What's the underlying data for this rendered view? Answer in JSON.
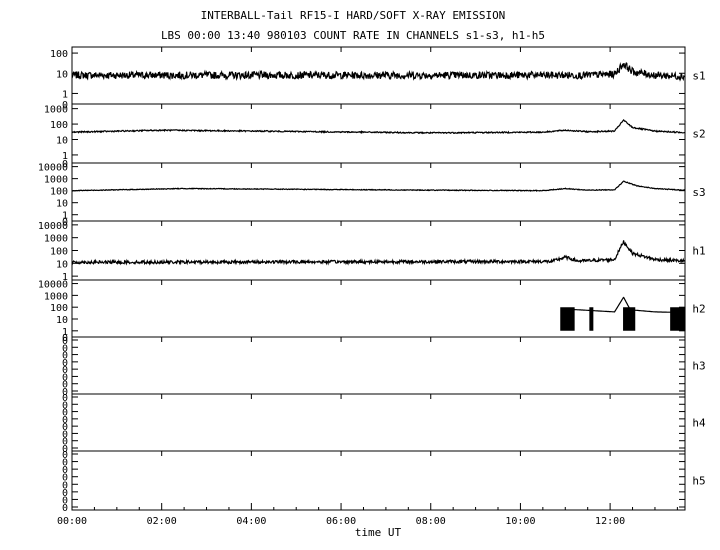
{
  "title": "INTERBALL-Tail RF15-I HARD/SOFT X-RAY EMISSION",
  "subtitle": "LBS 00:00 13:40 980103  COUNT RATE IN CHANNELS s1-s3, h1-h5",
  "chart_data": {
    "type": "line",
    "title": "INTERBALL-Tail RF15-I HARD/SOFT X-RAY EMISSION",
    "subtitle": "LBS 00:00 13:40 980103  COUNT RATE IN CHANNELS s1-s3, h1-h5",
    "xlabel": "time UT",
    "x_tick_labels": [
      "00:00",
      "02:00",
      "04:00",
      "06:00",
      "08:00",
      "10:00",
      "12:00"
    ],
    "x_ticks_hours": [
      0,
      2,
      4,
      6,
      8,
      10,
      12
    ],
    "xlim_hours": [
      0,
      13.67
    ],
    "y_scale": "log",
    "grid": false,
    "panels": [
      {
        "channel": "s1",
        "y_tick_labels": [
          "100",
          "10",
          "1",
          "0"
        ],
        "y_tick_values": [
          100,
          10,
          1,
          0.3
        ],
        "ylim": [
          0.3,
          200
        ],
        "baseline": 8,
        "noise_decades": 0.18,
        "points": [
          [
            0,
            8
          ],
          [
            11.4,
            8
          ],
          [
            12.1,
            9
          ],
          [
            12.3,
            30
          ],
          [
            12.5,
            12
          ],
          [
            13.0,
            8
          ],
          [
            13.67,
            7
          ]
        ]
      },
      {
        "channel": "s2",
        "y_tick_labels": [
          "1000",
          "100",
          "10",
          "1",
          "0"
        ],
        "y_tick_values": [
          1000,
          100,
          10,
          1,
          0.3
        ],
        "ylim": [
          0.3,
          2000
        ],
        "baseline": 30,
        "noise_decades": 0.04,
        "points": [
          [
            0,
            30
          ],
          [
            2,
            40
          ],
          [
            5,
            33
          ],
          [
            8,
            27
          ],
          [
            10.5,
            30
          ],
          [
            11.0,
            40
          ],
          [
            11.5,
            32
          ],
          [
            12.1,
            35
          ],
          [
            12.3,
            180
          ],
          [
            12.5,
            60
          ],
          [
            13.0,
            35
          ],
          [
            13.67,
            28
          ]
        ]
      },
      {
        "channel": "s3",
        "y_tick_labels": [
          "10000",
          "1000",
          "100",
          "10",
          "1",
          "0"
        ],
        "y_tick_values": [
          10000,
          1000,
          100,
          10,
          1,
          0.3
        ],
        "ylim": [
          0.3,
          20000
        ],
        "baseline": 100,
        "noise_decades": 0.03,
        "points": [
          [
            0,
            100
          ],
          [
            2.5,
            150
          ],
          [
            5,
            130
          ],
          [
            8,
            110
          ],
          [
            10.5,
            100
          ],
          [
            11.0,
            150
          ],
          [
            11.5,
            110
          ],
          [
            12.1,
            120
          ],
          [
            12.3,
            600
          ],
          [
            12.6,
            250
          ],
          [
            13.0,
            150
          ],
          [
            13.67,
            110
          ]
        ]
      },
      {
        "channel": "h1",
        "y_tick_labels": [
          "10000",
          "1000",
          "100",
          "10",
          "1"
        ],
        "y_tick_values": [
          10000,
          1000,
          100,
          10,
          1
        ],
        "ylim": [
          0.5,
          20000
        ],
        "baseline": 12,
        "noise_decades": 0.12,
        "points": [
          [
            0,
            12
          ],
          [
            10.7,
            14
          ],
          [
            11.0,
            30
          ],
          [
            11.3,
            15
          ],
          [
            12.1,
            20
          ],
          [
            12.3,
            500
          ],
          [
            12.5,
            60
          ],
          [
            13.0,
            20
          ],
          [
            13.67,
            15
          ]
        ]
      },
      {
        "channel": "h2",
        "y_tick_labels": [
          "10000",
          "1000",
          "100",
          "10",
          "1",
          "0"
        ],
        "y_tick_values": [
          10000,
          1000,
          100,
          10,
          1,
          0.3
        ],
        "ylim": [
          0.3,
          20000
        ],
        "baseline": 30,
        "noise_decades": 0,
        "points": [
          [
            10.9,
            70
          ],
          [
            11.3,
            60
          ],
          [
            12.1,
            40
          ],
          [
            12.3,
            700
          ],
          [
            12.45,
            60
          ],
          [
            13.0,
            40
          ],
          [
            13.67,
            35
          ]
        ]
      },
      {
        "channel": "h3",
        "y_tick_labels": [
          "0",
          "0",
          "0",
          "0",
          "0",
          "0",
          "0",
          "0"
        ],
        "points": []
      },
      {
        "channel": "h4",
        "y_tick_labels": [
          "0",
          "0",
          "0",
          "0",
          "0",
          "0",
          "0",
          "0"
        ],
        "points": []
      },
      {
        "channel": "h5",
        "y_tick_labels": [
          "0",
          "0",
          "0",
          "0",
          "0",
          "0",
          "0",
          "0"
        ],
        "points": []
      }
    ]
  }
}
